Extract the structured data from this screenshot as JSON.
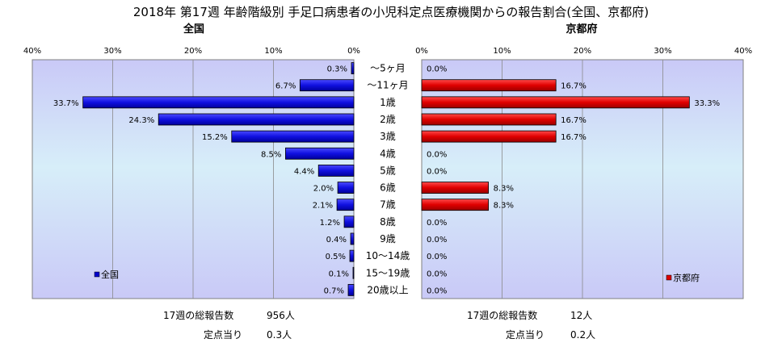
{
  "chart_data": {
    "type": "bar",
    "title": "2018年 第17週 年齢階級別 手足口病患者の小児科定点医療機関からの報告割合(全国、京都府)",
    "categories": [
      "～5ヶ月",
      "～11ヶ月",
      "1歳",
      "2歳",
      "3歳",
      "4歳",
      "5歳",
      "6歳",
      "7歳",
      "8歳",
      "9歳",
      "10～14歳",
      "15～19歳",
      "20歳以上"
    ],
    "xlim": [
      0,
      40
    ],
    "x_ticks": [
      "0%",
      "10%",
      "20%",
      "30%",
      "40%"
    ],
    "grid": true,
    "panels": [
      {
        "name": "全国",
        "series_name": "全国",
        "color": "#0000cc",
        "direction": "left",
        "values": [
          0.3,
          6.7,
          33.7,
          24.3,
          15.2,
          8.5,
          4.4,
          2.0,
          2.1,
          1.2,
          0.4,
          0.5,
          0.1,
          0.7
        ],
        "labels": [
          "0.3%",
          "6.7%",
          "33.7%",
          "24.3%",
          "15.2%",
          "8.5%",
          "4.4%",
          "2.0%",
          "2.1%",
          "1.2%",
          "0.4%",
          "0.5%",
          "0.1%",
          "0.7%"
        ],
        "legend_position": "bottom-left",
        "total_label": "17週の総報告数",
        "total_value": "956人",
        "per_site_label": "定点当り",
        "per_site_value": "0.3人"
      },
      {
        "name": "京都府",
        "series_name": "京都府",
        "color": "#dd0000",
        "direction": "right",
        "values": [
          0.0,
          16.7,
          33.3,
          16.7,
          16.7,
          0.0,
          0.0,
          8.3,
          8.3,
          0.0,
          0.0,
          0.0,
          0.0,
          0.0
        ],
        "labels": [
          "0.0%",
          "16.7%",
          "33.3%",
          "16.7%",
          "16.7%",
          "0.0%",
          "0.0%",
          "8.3%",
          "8.3%",
          "0.0%",
          "0.0%",
          "0.0%",
          "0.0%",
          "0.0%"
        ],
        "legend_position": "bottom-right",
        "total_label": "17週の総報告数",
        "total_value": "12人",
        "per_site_label": "定点当り",
        "per_site_value": "0.2人"
      }
    ]
  }
}
